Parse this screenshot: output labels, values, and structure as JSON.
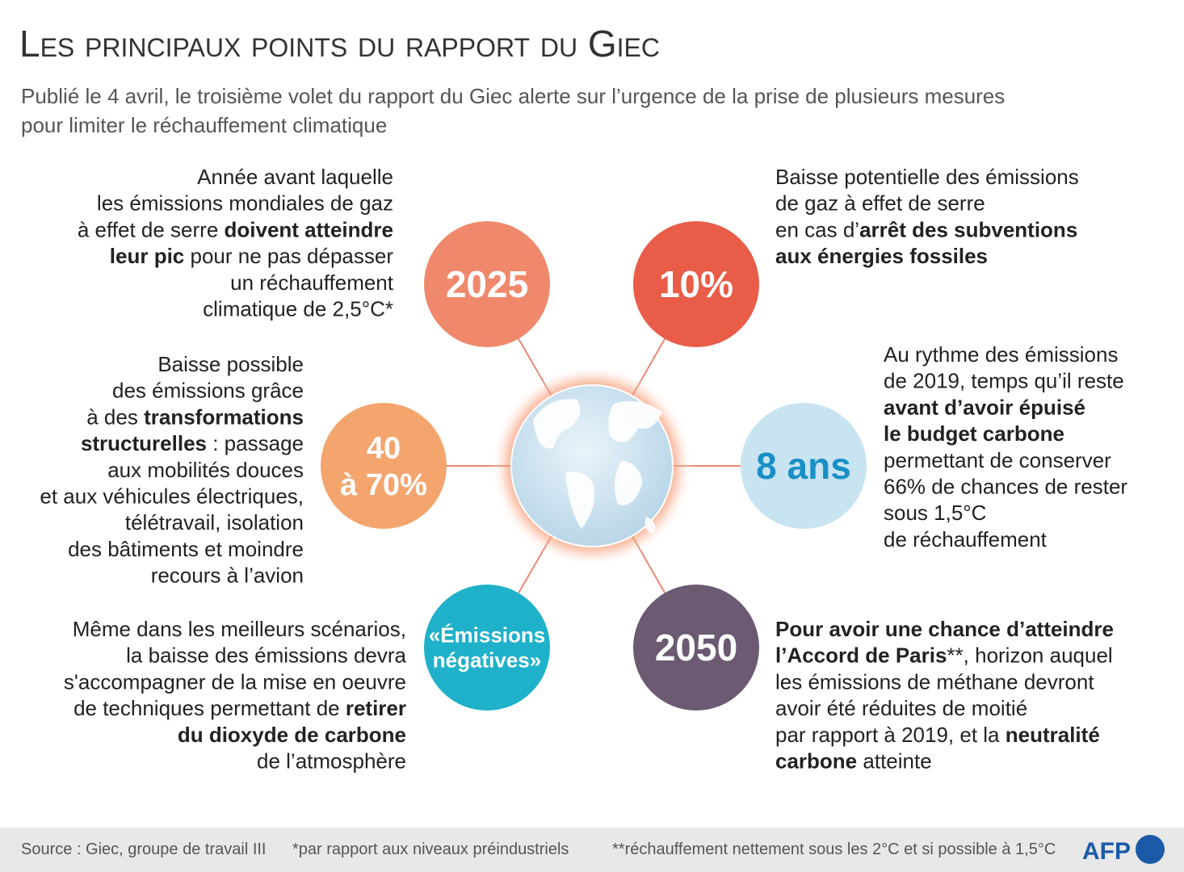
{
  "header": {
    "title": "Les principaux points du rapport du Giec",
    "subtitle": [
      "Publié le 4 avril, le troisième volet du rapport du Giec alerte sur l’urgence de la prise de plusieurs mesures",
      "pour limiter le réchauffement climatique"
    ]
  },
  "items": [
    {
      "label": [
        "2025"
      ],
      "color": "#f0896b",
      "label_color": "#ffffff",
      "lines": [
        [
          "Année avant laquelle"
        ],
        [
          "les émissions mondiales de gaz"
        ],
        [
          "à effet de serre ",
          {
            "t": "doivent atteindre",
            "b": true
          }
        ],
        [
          {
            "t": "leur pic",
            "b": true
          },
          " pour ne pas dépasser"
        ],
        [
          "un réchauffement"
        ],
        [
          "climatique de 2,5°C*"
        ]
      ]
    },
    {
      "label": [
        "10%"
      ],
      "color": "#e85c48",
      "label_color": "#ffffff",
      "lines": [
        [
          "Baisse potentielle des émissions"
        ],
        [
          "de gaz à effet de serre"
        ],
        [
          "en cas d’",
          {
            "t": "arrêt des subventions",
            "b": true
          }
        ],
        [
          {
            "t": "aux énergies fossiles",
            "b": true
          }
        ]
      ]
    },
    {
      "label": [
        "40",
        "à 70%"
      ],
      "color": "#f4a56e",
      "label_color": "#ffffff",
      "lines": [
        [
          "Baisse possible"
        ],
        [
          "des émissions grâce"
        ],
        [
          "à des ",
          {
            "t": "transformations",
            "b": true
          }
        ],
        [
          {
            "t": "structurelles",
            "b": true
          },
          " : passage"
        ],
        [
          "aux mobilités douces"
        ],
        [
          "et aux véhicules électriques,"
        ],
        [
          "télétravail, isolation"
        ],
        [
          "des bâtiments et moindre"
        ],
        [
          "recours à l’avion"
        ]
      ]
    },
    {
      "label": [
        "8 ans"
      ],
      "color": "#c8e4f1",
      "label_color": "#1a8fc7",
      "lines": [
        [
          "Au rythme des émissions"
        ],
        [
          "de 2019, temps qu’il reste"
        ],
        [
          {
            "t": "avant d’avoir épuisé",
            "b": true
          }
        ],
        [
          {
            "t": "le budget carbone",
            "b": true
          }
        ],
        [
          "permettant de conserver"
        ],
        [
          "66% de chances de rester"
        ],
        [
          "sous 1,5°C"
        ],
        [
          "de réchauffement"
        ]
      ]
    },
    {
      "label": [
        "«Émissions",
        "négatives»"
      ],
      "color": "#1fb1c9",
      "label_color": "#ffffff",
      "lines": [
        [
          "Même dans les meilleurs scénarios,"
        ],
        [
          "la baisse des émissions devra"
        ],
        [
          "s'accompagner de la mise en oeuvre"
        ],
        [
          "de techniques permettant de ",
          {
            "t": "retirer",
            "b": true
          }
        ],
        [
          {
            "t": "du dioxyde de carbone",
            "b": true
          }
        ],
        [
          "de l’atmosphère"
        ]
      ]
    },
    {
      "label": [
        "2050"
      ],
      "color": "#6b5a72",
      "label_color": "#ffffff",
      "lines": [
        [
          {
            "t": "Pour avoir une chance d’atteindre",
            "b": true
          }
        ],
        [
          {
            "t": "l’Accord de Paris",
            "b": true
          },
          "**, horizon auquel"
        ],
        [
          "les émissions de méthane devront"
        ],
        [
          "avoir été réduites de moitié"
        ],
        [
          "par rapport à 2019, et la ",
          {
            "t": "neutralité",
            "b": true
          }
        ],
        [
          {
            "t": "carbone",
            "b": true
          },
          " atteinte"
        ]
      ]
    }
  ],
  "footer": {
    "notes": [
      "Source : Giec, groupe de travail III",
      "*par rapport aux niveaux préindustriels",
      "**réchauffement nettement sous les 2°C et si possible à 1,5°C"
    ],
    "logo": "AFP"
  }
}
